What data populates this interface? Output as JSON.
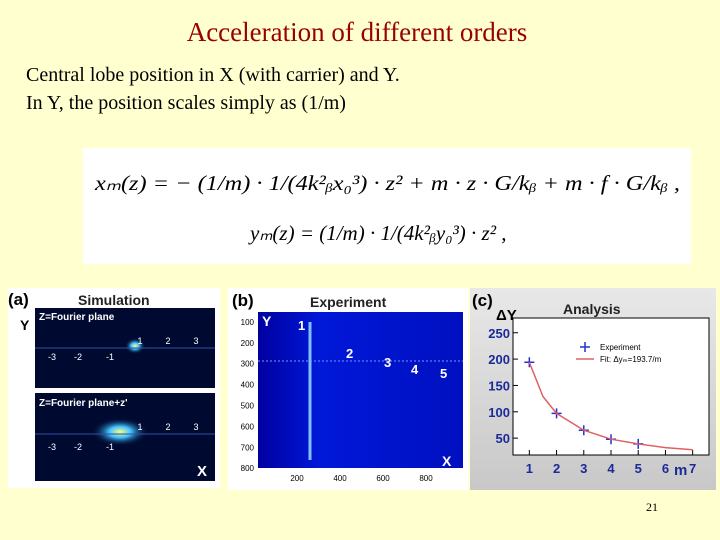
{
  "title": "Acceleration of different orders",
  "body": [
    "Central lobe position in X (with carrier) and Y.",
    "In Y, the position scales simply as (1/m)"
  ],
  "equations": [
    "xₘ(z) = − (1/m) · 1/(4k²ᵦx₀³) · z² + m · z · G/kᵦ + m · f · G/kᵦ ,",
    "yₘ(z) = (1/m) · 1/(4k²ᵦy₀³) · z² ,"
  ],
  "panel_a": {
    "label": "(a)",
    "title": "Simulation",
    "y_label": "Y",
    "x_label": "X",
    "top": {
      "caption": "Z=Fourier plane",
      "orders": [
        "-3",
        "-2",
        "-1",
        "1",
        "2",
        "3"
      ]
    },
    "bottom": {
      "caption": "Z=Fourier plane+z'",
      "orders": [
        "-3",
        "-2",
        "-1",
        "1",
        "2",
        "3"
      ]
    }
  },
  "panel_b": {
    "label": "(b)",
    "title": "Experiment",
    "y_label": "Y",
    "x_label": "X",
    "yticks": [
      100,
      200,
      300,
      400,
      500,
      600,
      700,
      800
    ],
    "xticks": [
      200,
      400,
      600,
      800
    ],
    "orders": [
      "1",
      "2",
      "3",
      "4",
      "5"
    ]
  },
  "chart_data": {
    "type": "scatter",
    "label": "(c)",
    "title": "Analysis",
    "y_label": "ΔY",
    "x_label": "m",
    "xlim": [
      0.4,
      7.6
    ],
    "ylim": [
      18,
      278
    ],
    "xticks": [
      1,
      2,
      3,
      4,
      5,
      6,
      7
    ],
    "yticks": [
      50,
      100,
      150,
      200,
      250
    ],
    "series": [
      {
        "name": "Experiment",
        "color": "#2233cc",
        "marker": "+",
        "x": [
          1,
          2,
          3,
          4,
          5
        ],
        "values": [
          194,
          97,
          65,
          48,
          39
        ]
      },
      {
        "name": "Fit: Δyₘ=193.7/m",
        "color": "#e06060",
        "marker": "line",
        "x": [
          1,
          1.5,
          2,
          3,
          4,
          5,
          6,
          7
        ],
        "values": [
          194,
          129,
          97,
          65,
          48,
          39,
          32,
          28
        ]
      }
    ]
  },
  "page_number": "21"
}
